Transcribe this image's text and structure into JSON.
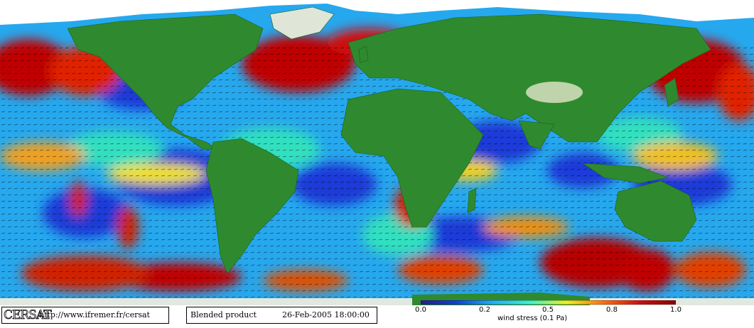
{
  "logo": "CERSAT",
  "url": "http://www.ifremer.fr/cersat",
  "product": "Blended product",
  "datetime": "26-Feb-2005 18:00:00",
  "colorbar": {
    "ticks": [
      "0.0",
      "0.2",
      "0.5",
      "0.8",
      "1.0"
    ],
    "title": "wind stress (0.1 Pa)",
    "colors": [
      "#2b1b8a",
      "#1040e0",
      "#22b0ff",
      "#40f0d0",
      "#f0f020",
      "#ff7010",
      "#d01010",
      "#8a0000"
    ]
  },
  "palette": {
    "ocean_low": "#1a3ad8",
    "ocean_mid": "#2ec4f0",
    "ocean_calm": "#30d0a0",
    "ocean_high": "#f08010",
    "ocean_max": "#b80000",
    "land": "#2f8a2f",
    "land_high": "#d8e0c0",
    "ice": "#ffffff"
  }
}
